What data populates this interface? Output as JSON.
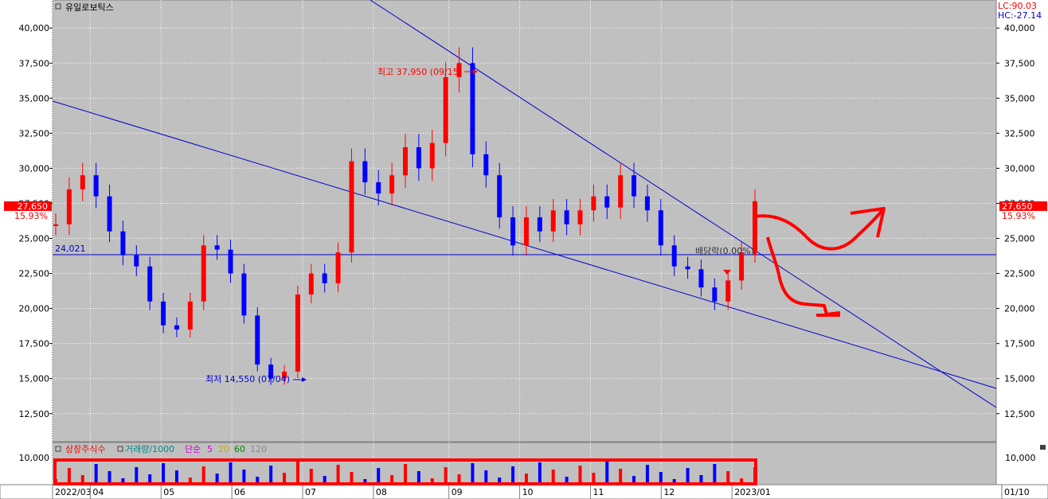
{
  "title": "유일로보틱스",
  "top_right": {
    "lc": "LC:90.03",
    "hc": "HC:-27.14"
  },
  "current": {
    "price": "27,650",
    "change": "15.93%",
    "value": 27650
  },
  "reference_line": {
    "label": "24,021",
    "value": 24021
  },
  "annotations": {
    "high": "최고 37,950 (09/15)",
    "low": "최저 14,550 (07/04)",
    "dividend": "배당락(0.00%)"
  },
  "volume_legend": {
    "shares": "상장주식수",
    "volume": "거래량/1000",
    "ma_label": "단순",
    "ma5": "5",
    "ma20": "20",
    "ma60": "60",
    "ma120": "120"
  },
  "colors": {
    "up": "#ff0000",
    "down": "#0000ff",
    "trend": "#0000cc",
    "plot_bg": "#c0c0c0",
    "ma5": "#cc00cc",
    "ma20": "#ccaa00",
    "ma60": "#008800",
    "ma120": "#888888",
    "volume_legend_text": "#008888",
    "shares_text": "#ff0000"
  },
  "chart_data": {
    "type": "candlestick",
    "title": "유일로보틱스",
    "y_price_ticks": [
      "12,500",
      "15,000",
      "17,500",
      "20,000",
      "22,500",
      "25,000",
      "27,500",
      "30,000",
      "32,500",
      "35,000",
      "37,500",
      "40,000"
    ],
    "y_volume_ticks": [
      "10,000"
    ],
    "x_ticks": [
      "2022/03",
      "04",
      "05",
      "06",
      "07",
      "08",
      "09",
      "10",
      "11",
      "12",
      "2023/01",
      "01/10"
    ],
    "ylim": [
      10500,
      42000
    ],
    "grid": true,
    "series": [
      {
        "name": "Price",
        "points": [
          {
            "t": "2022/03",
            "price": 26000
          },
          {
            "t": "03",
            "price": 28500
          },
          {
            "t": "03",
            "price": 29500
          },
          {
            "t": "04",
            "price": 28000
          },
          {
            "t": "04",
            "price": 25500
          },
          {
            "t": "04",
            "price": 23800
          },
          {
            "t": "05",
            "price": 23000
          },
          {
            "t": "05",
            "price": 20500
          },
          {
            "t": "05",
            "price": 18800
          },
          {
            "t": "05",
            "price": 18500
          },
          {
            "t": "06",
            "price": 20500
          },
          {
            "t": "06",
            "price": 24500
          },
          {
            "t": "06",
            "price": 24200
          },
          {
            "t": "06",
            "price": 22500
          },
          {
            "t": "07",
            "price": 19500
          },
          {
            "t": "07",
            "price": 16000
          },
          {
            "t": "07",
            "price": 15000
          },
          {
            "t": "07",
            "price": 15500
          },
          {
            "t": "07",
            "price": 21000
          },
          {
            "t": "07",
            "price": 22500
          },
          {
            "t": "07",
            "price": 21800
          },
          {
            "t": "08",
            "price": 24000
          },
          {
            "t": "08",
            "price": 30500
          },
          {
            "t": "08",
            "price": 29000
          },
          {
            "t": "08",
            "price": 28200
          },
          {
            "t": "08",
            "price": 29500
          },
          {
            "t": "09",
            "price": 31500
          },
          {
            "t": "09",
            "price": 30000
          },
          {
            "t": "09",
            "price": 31800
          },
          {
            "t": "09",
            "price": 36500
          },
          {
            "t": "09",
            "price": 37500
          },
          {
            "t": "09",
            "price": 31000
          },
          {
            "t": "10",
            "price": 29500
          },
          {
            "t": "10",
            "price": 26500
          },
          {
            "t": "10",
            "price": 24500
          },
          {
            "t": "10",
            "price": 26500
          },
          {
            "t": "10",
            "price": 25500
          },
          {
            "t": "10",
            "price": 27000
          },
          {
            "t": "11",
            "price": 26000
          },
          {
            "t": "11",
            "price": 27000
          },
          {
            "t": "11",
            "price": 28000
          },
          {
            "t": "11",
            "price": 27200
          },
          {
            "t": "11",
            "price": 29500
          },
          {
            "t": "11",
            "price": 28000
          },
          {
            "t": "12",
            "price": 27000
          },
          {
            "t": "12",
            "price": 24500
          },
          {
            "t": "12",
            "price": 23000
          },
          {
            "t": "12",
            "price": 22800
          },
          {
            "t": "12",
            "price": 21500
          },
          {
            "t": "12",
            "price": 20500
          },
          {
            "t": "2023/01",
            "price": 22000
          },
          {
            "t": "2023/01",
            "price": 24000
          },
          {
            "t": "2023/01",
            "price": 27650
          }
        ]
      }
    ],
    "high": {
      "value": 37950,
      "date": "09/15"
    },
    "low": {
      "value": 14550,
      "date": "07/04"
    }
  }
}
